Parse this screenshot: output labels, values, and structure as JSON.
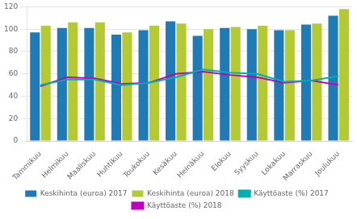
{
  "chart_data": {
    "type": "bar",
    "categories": [
      "Tammikuu",
      "Helmikuu",
      "Maaliskuu",
      "Huhtikuu",
      "Toukokuu",
      "Kesäkuu",
      "Heinäkuu",
      "Elokuu",
      "Syyskuu",
      "Lokakuu",
      "Marraskuu",
      "Joulukuu"
    ],
    "series": [
      {
        "name": "Keskihinta (euroa) 2017",
        "type": "bar",
        "color": "#1f7ab5",
        "values": [
          97,
          101,
          101,
          95,
          99,
          107,
          94,
          101,
          100,
          99,
          104,
          112
        ]
      },
      {
        "name": "Keskihinta (euroa) 2018",
        "type": "bar",
        "color": "#b5c934",
        "values": [
          103,
          106,
          106,
          97,
          103,
          105,
          100,
          102,
          103,
          99,
          105,
          118
        ]
      },
      {
        "name": "Käyttöaste (%) 2017",
        "type": "line",
        "color": "#00b0b0",
        "values": [
          50,
          55,
          55,
          50,
          52,
          57,
          64,
          61,
          60,
          53,
          54,
          58
        ]
      },
      {
        "name": "Käyttöaste (%) 2018",
        "type": "line",
        "color": "#c000c0",
        "values": [
          49,
          57,
          56,
          51,
          52,
          60,
          62,
          59,
          57,
          52,
          54,
          50
        ]
      }
    ],
    "ylim": [
      0,
      120
    ],
    "yticks": [
      0,
      20,
      40,
      60,
      80,
      100,
      120
    ],
    "grid": true,
    "legend": "bottom"
  }
}
